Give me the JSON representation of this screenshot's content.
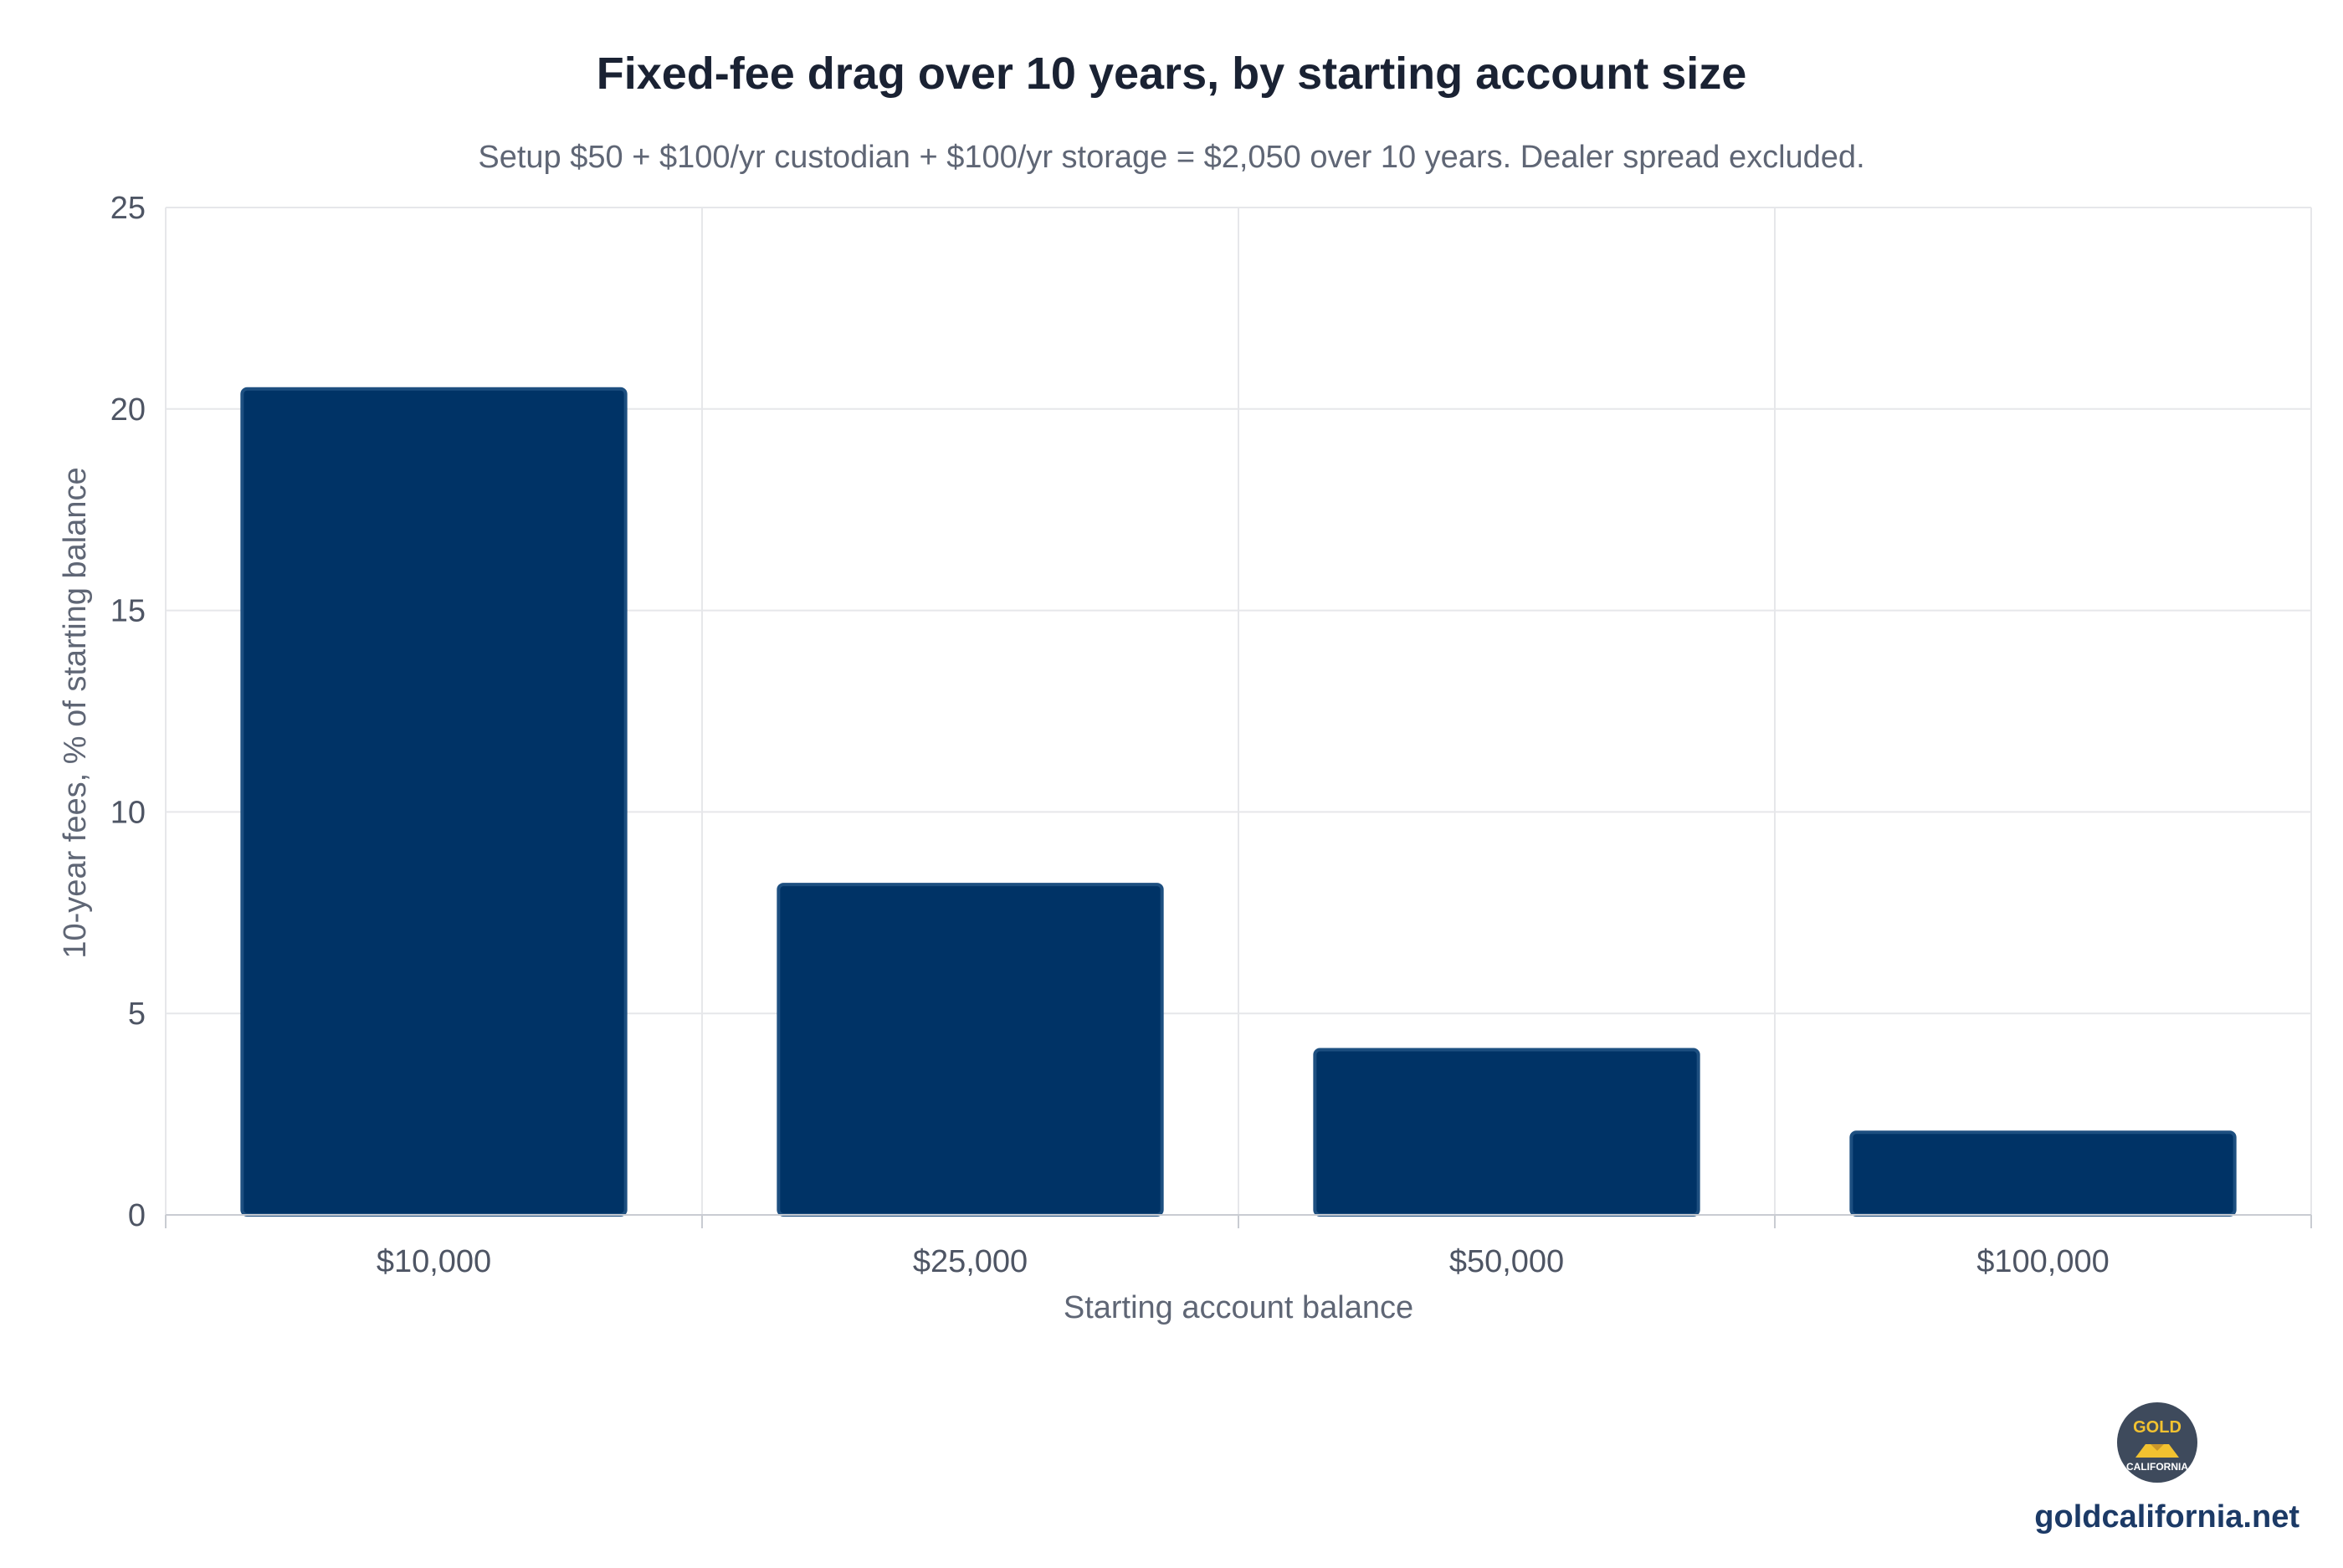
{
  "chart_data": {
    "type": "bar",
    "title": "Fixed-fee drag over 10 years, by starting account size",
    "subtitle": "Setup $50 + $100/yr custodian + $100/yr storage = $2,050 over 10 years. Dealer spread excluded.",
    "xlabel": "Starting account balance",
    "ylabel": "10-year fees, % of starting balance",
    "categories": [
      "$10,000",
      "$25,000",
      "$50,000",
      "$100,000"
    ],
    "values": [
      20.5,
      8.2,
      4.1,
      2.05
    ],
    "ylim": [
      0,
      25
    ],
    "yticks": [
      0,
      5,
      10,
      15,
      20,
      25
    ],
    "grid": true,
    "legend": "none",
    "bar_color": "#003366",
    "bar_edge_color": "#1d4f80"
  },
  "branding": {
    "logo_top_text": "GOLD",
    "logo_bottom_text": "CALIFORNIA",
    "site": "goldcalifornia.net"
  },
  "colors": {
    "title": "#1a2233",
    "text_muted": "#5f6675",
    "grid": "#e6e7ea",
    "brand_text": "#1c3a66",
    "logo_bg": "#3e4a5c",
    "logo_gold": "#f2c230"
  }
}
